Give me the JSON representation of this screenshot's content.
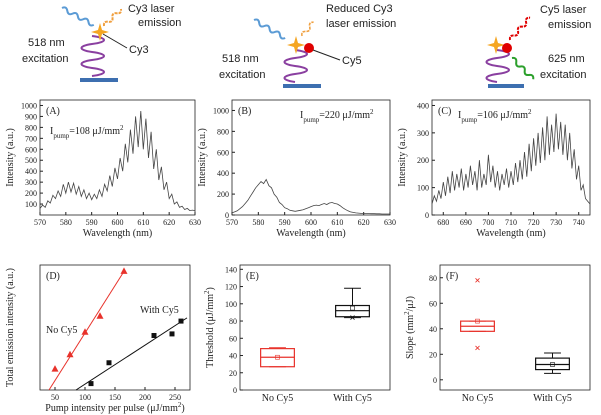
{
  "diagrams": [
    {
      "emission": [
        "Cy3 laser",
        "emission"
      ],
      "excitation": [
        "518 nm",
        "excitation"
      ],
      "dye": "Cy3"
    },
    {
      "emission": [
        "Reduced Cy3",
        "laser emission"
      ],
      "excitation": [
        "518 nm",
        "excitation"
      ],
      "dye": "Cy5"
    },
    {
      "emission": [
        "Cy5 laser",
        "emission"
      ],
      "excitation": [
        "625 nm",
        "excitation"
      ]
    }
  ],
  "chart_data": [
    {
      "type": "line",
      "label": "(A)",
      "annotation": {
        "text": "I",
        "sub": "pump",
        "end": "=108 μJ/mm",
        "sup": "2"
      },
      "xlabel": "Wavelength (nm)",
      "ylabel": "Intensity (a.u.)",
      "xlim": [
        570,
        630
      ],
      "xticks": [
        570,
        580,
        590,
        600,
        610,
        620,
        630
      ],
      "ylim": [
        0,
        1050
      ],
      "yticks": [
        100,
        200,
        300,
        400,
        500,
        600,
        700,
        800,
        900,
        1000
      ],
      "series": [
        {
          "color": "#444444",
          "x": [
            570,
            571,
            572,
            573,
            574,
            575,
            576,
            577,
            578,
            579,
            580,
            581,
            582,
            583,
            584,
            585,
            586,
            587,
            588,
            589,
            590,
            591,
            592,
            593,
            594,
            595,
            596,
            597,
            598,
            599,
            600,
            601,
            602,
            603,
            604,
            605,
            606,
            607,
            608,
            609,
            610,
            611,
            612,
            613,
            614,
            615,
            616,
            617,
            618,
            619,
            620,
            621,
            622,
            623,
            624,
            625,
            626,
            627,
            628,
            629,
            630
          ],
          "values": [
            60,
            90,
            70,
            130,
            110,
            180,
            150,
            220,
            170,
            280,
            200,
            300,
            210,
            290,
            190,
            260,
            170,
            230,
            150,
            200,
            140,
            190,
            150,
            230,
            170,
            280,
            220,
            360,
            260,
            430,
            330,
            520,
            400,
            650,
            480,
            780,
            560,
            900,
            620,
            950,
            600,
            880,
            520,
            760,
            420,
            600,
            320,
            440,
            230,
            300,
            150,
            190,
            100,
            120,
            70,
            80,
            50,
            60,
            40,
            45,
            40
          ]
        }
      ]
    },
    {
      "type": "line",
      "label": "(B)",
      "annotation": {
        "text": "I",
        "sub": "pump",
        "end": "=220 μJ/mm",
        "sup": "2"
      },
      "xlabel": "Wavelength (nm)",
      "ylabel": "Intensity (a.u.)",
      "xlim": [
        570,
        630
      ],
      "xticks": [
        570,
        580,
        590,
        600,
        610,
        620,
        630
      ],
      "ylim": [
        0,
        1100
      ],
      "yticks": [
        0,
        200,
        400,
        600,
        800,
        1000
      ],
      "series": [
        {
          "color": "#444444",
          "x": [
            570,
            571,
            572,
            573,
            574,
            575,
            576,
            577,
            578,
            579,
            580,
            581,
            582,
            583,
            584,
            585,
            586,
            587,
            588,
            589,
            590,
            591,
            592,
            593,
            594,
            595,
            596,
            597,
            598,
            599,
            600,
            601,
            602,
            603,
            604,
            605,
            606,
            607,
            608,
            609,
            610,
            611,
            612,
            613,
            614,
            615,
            616,
            617,
            618,
            619,
            620,
            621,
            622,
            623,
            624,
            625,
            626,
            627,
            628,
            629,
            630
          ],
          "values": [
            20,
            30,
            40,
            60,
            80,
            110,
            140,
            180,
            220,
            260,
            290,
            320,
            300,
            340,
            280,
            260,
            200,
            170,
            120,
            100,
            70,
            60,
            45,
            40,
            35,
            40,
            45,
            50,
            60,
            70,
            80,
            90,
            95,
            90,
            100,
            110,
            100,
            115,
            120,
            110,
            105,
            90,
            70,
            55,
            40,
            30,
            25,
            20,
            18,
            15,
            15,
            14,
            13,
            12,
            12,
            11,
            11,
            10,
            10,
            10,
            10
          ]
        }
      ]
    },
    {
      "type": "line",
      "label": "(C)",
      "annotation": {
        "text": "I",
        "sub": "pump",
        "end": "=106 μJ/mm",
        "sup": "2"
      },
      "xlabel": "Wavelength (nm)",
      "ylabel": "Intensity (a.u.)",
      "xlim": [
        675,
        745
      ],
      "xticks": [
        680,
        690,
        700,
        710,
        720,
        730,
        740
      ],
      "ylim": [
        0,
        420
      ],
      "yticks": [
        0,
        100,
        200,
        300,
        400
      ],
      "series": [
        {
          "color": "#444444",
          "x": [
            675,
            676,
            677,
            678,
            679,
            680,
            681,
            682,
            683,
            684,
            685,
            686,
            687,
            688,
            689,
            690,
            691,
            692,
            693,
            694,
            695,
            696,
            697,
            698,
            699,
            700,
            701,
            702,
            703,
            704,
            705,
            706,
            707,
            708,
            709,
            710,
            711,
            712,
            713,
            714,
            715,
            716,
            717,
            718,
            719,
            720,
            721,
            722,
            723,
            724,
            725,
            726,
            727,
            728,
            729,
            730,
            731,
            732,
            733,
            734,
            735,
            736,
            737,
            738,
            739,
            740,
            741,
            742,
            743,
            744,
            745
          ],
          "values": [
            40,
            70,
            50,
            90,
            60,
            120,
            70,
            140,
            80,
            160,
            90,
            150,
            100,
            170,
            90,
            150,
            100,
            180,
            110,
            160,
            90,
            200,
            100,
            150,
            110,
            220,
            120,
            180,
            100,
            160,
            90,
            150,
            110,
            170,
            100,
            160,
            110,
            190,
            120,
            200,
            130,
            230,
            140,
            260,
            160,
            280,
            180,
            300,
            190,
            320,
            200,
            360,
            220,
            330,
            230,
            370,
            240,
            340,
            220,
            330,
            200,
            300,
            170,
            240,
            130,
            180,
            90,
            110,
            60,
            50,
            40
          ]
        }
      ]
    },
    {
      "type": "scatter",
      "label": "(D)",
      "xlabel": {
        "text": "Pump intensity per pulse (μJ/mm",
        "sup": "2",
        "end": ")"
      },
      "ylabel": "Total emission intensity (a.u.)",
      "xlim": [
        25,
        275
      ],
      "xticks": [
        50,
        100,
        150,
        200,
        250
      ],
      "ylim": [
        0,
        3900
      ],
      "series": [
        {
          "name": "No Cy5",
          "color": "#e8322b",
          "marker": "triangle",
          "x": [
            50,
            75,
            100,
            125,
            165
          ],
          "values": [
            650,
            1100,
            1800,
            2300,
            3700
          ],
          "fit": {
            "x": [
              40,
              165
            ],
            "values": [
              0,
              3700
            ]
          }
        },
        {
          "name": "With Cy5",
          "color": "#111111",
          "marker": "square",
          "x": [
            110,
            140,
            215,
            245,
            260
          ],
          "values": [
            200,
            850,
            1700,
            1750,
            2150
          ],
          "fit": {
            "x": [
              85,
              270
            ],
            "values": [
              0,
              2250
            ]
          }
        }
      ]
    },
    {
      "type": "box",
      "label": "(E)",
      "ylabel": {
        "text": "Threshold (μJ/mm",
        "sup": "2",
        "end": ")"
      },
      "categories": [
        "No Cy5",
        "With Cy5"
      ],
      "ylim": [
        0,
        145
      ],
      "yticks": [
        0,
        20,
        40,
        60,
        80,
        100,
        120,
        140
      ],
      "boxes": [
        {
          "color": "#e8322b",
          "min": 27,
          "q1": 27,
          "median": 38,
          "q3": 48,
          "max": 49,
          "mean": 38
        },
        {
          "color": "#111111",
          "min": 84,
          "q1": 85,
          "median": 92,
          "q3": 98,
          "max": 118,
          "mean": 95,
          "outliers": [
            84
          ]
        }
      ]
    },
    {
      "type": "box",
      "label": "(F)",
      "ylabel": {
        "text": "Slope (mm",
        "sup": "2",
        "end": "/μJ)"
      },
      "categories": [
        "No Cy5",
        "With Cy5"
      ],
      "ylim": [
        -8,
        90
      ],
      "yticks": [
        0,
        20,
        40,
        60,
        80
      ],
      "boxes": [
        {
          "color": "#e8322b",
          "min": 38,
          "q1": 38,
          "median": 42,
          "q3": 46,
          "max": 46,
          "mean": 46,
          "outliers": [
            78,
            25
          ]
        },
        {
          "color": "#111111",
          "min": 5,
          "q1": 8,
          "median": 12,
          "q3": 17,
          "max": 21,
          "mean": 12
        }
      ]
    }
  ]
}
